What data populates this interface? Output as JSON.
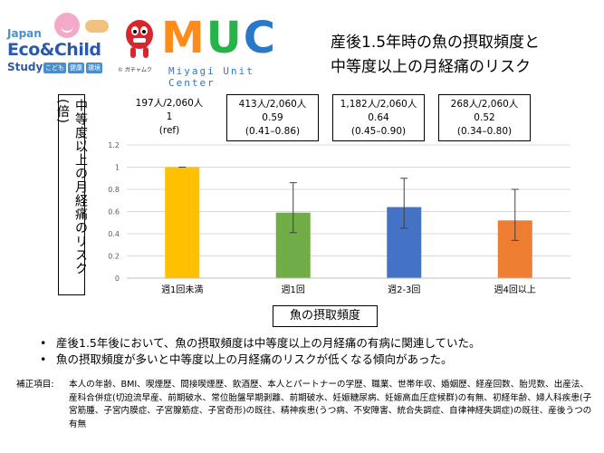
{
  "logo_jecs": {
    "japan": "Japan",
    "eco": "Eco&Child",
    "study": "Study",
    "tags": [
      "こども",
      "健康",
      "環境"
    ]
  },
  "logo_muc": {
    "m": "M",
    "u": "U",
    "c": "C",
    "sub": "Miyagi Unit Center",
    "copy": "© ガチャムク"
  },
  "title_line1": "産後1.5年時の魚の摂取頻度と",
  "title_line2": "中等度以上の月経痛のリスク",
  "annotations": [
    {
      "line1": "197人/2,060人",
      "line2": "1",
      "line3": "(ref)"
    },
    {
      "line1": "413人/2,060人",
      "line2": "0.59",
      "line3": "(0.41–0.86)"
    },
    {
      "line1": "1,182人/2,060人",
      "line2": "0.64",
      "line3": "(0.45–0.90)"
    },
    {
      "line1": "268人/2,060人",
      "line2": "0.52",
      "line3": "(0.34–0.80)"
    }
  ],
  "chart_data": {
    "type": "bar",
    "categories": [
      "週1回未満",
      "週1回",
      "週2-3回",
      "週4回以上"
    ],
    "values": [
      1,
      0.59,
      0.64,
      0.52
    ],
    "ci_low": [
      1,
      0.41,
      0.45,
      0.34
    ],
    "ci_high": [
      1,
      0.86,
      0.9,
      0.8
    ],
    "colors": [
      "#ffc000",
      "#70ad47",
      "#4472c4",
      "#ed7d31"
    ],
    "xlabel": "魚の摂取頻度",
    "ylabel": "中等度以上の月経痛のリスク(倍)",
    "ylim": [
      0,
      1.2
    ],
    "yticks": [
      0,
      0.2,
      0.4,
      0.6,
      0.8,
      1,
      1.2
    ],
    "ytick_labels": [
      "0",
      "0.2",
      "0.4",
      "0.6",
      "0.8",
      "1",
      "1.2"
    ],
    "grid": true
  },
  "bullets": [
    "産後1.5年後において、魚の摂取頻度は中等度以上の月経痛の有病に関連していた。",
    "魚の摂取頻度が多いと中等度以上の月経痛のリスクが低くなる傾向があった。"
  ],
  "notes_label": "補正項目:",
  "notes_text": "本人の年齢、BMI、喫煙歴、間接喫煙歴、飲酒歴、本人とパートナーの学歴、職業、世帯年収、婚姻歴、経産回数、胎児数、出産法、産科合併症(切迫流早産、前期破水、常位胎盤早期剥離、前期破水、妊娠糖尿病、妊娠高血圧症候群)の有無、初経年齢、婦人科疾患(子宮筋腫、子宮内膜症、子宮腺筋症、子宮奇形)の既往、精神疾患(うつ病、不安障害、統合失調症、自律神経失調症)の既往、産後うつの有無"
}
